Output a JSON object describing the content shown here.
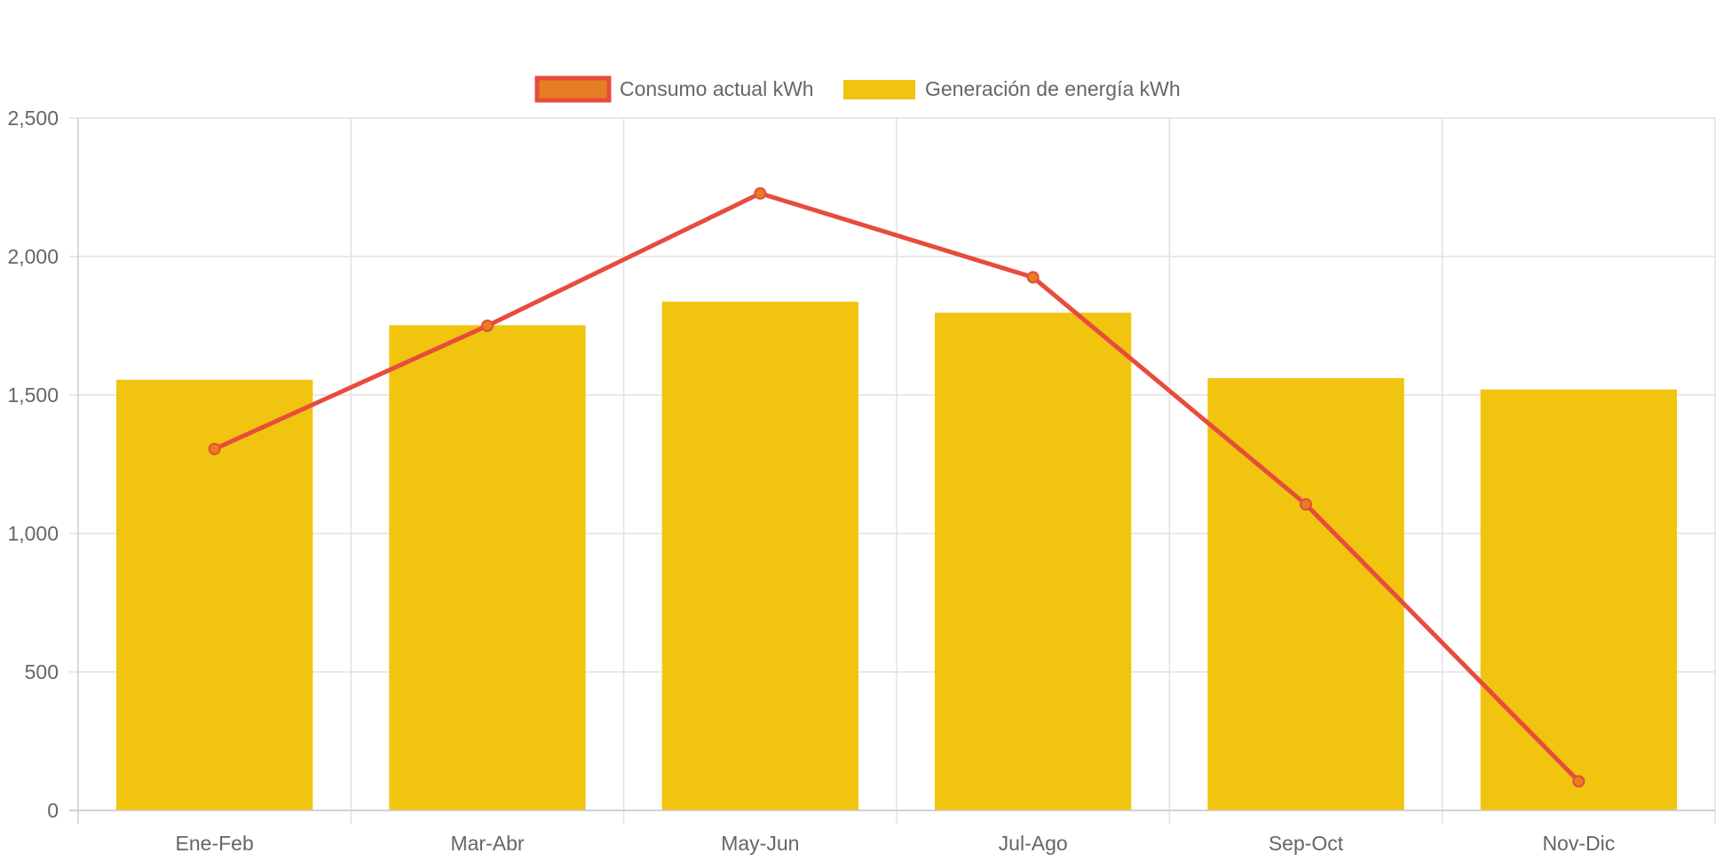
{
  "chart_data": {
    "type": "bar",
    "title": "",
    "xlabel": "",
    "ylabel": "",
    "ylim": [
      0,
      2500
    ],
    "yticks": [
      0,
      500,
      1000,
      1500,
      2000,
      2500
    ],
    "ytick_labels": [
      "0",
      "500",
      "1,000",
      "1,500",
      "2,000",
      "2,500"
    ],
    "grid": true,
    "legend_position": "top-center",
    "categories": [
      "Ene-Feb",
      "Mar-Abr",
      "May-Jun",
      "Jul-Ago",
      "Sep-Oct",
      "Nov-Dic"
    ],
    "series": [
      {
        "name": "Consumo actual kWh",
        "type": "line",
        "values": [
          1305,
          1750,
          2228,
          1925,
          1105,
          105
        ],
        "color": "#e74c3c",
        "point_color": "#e67e22"
      },
      {
        "name": "Generación de energía kWh",
        "type": "bar",
        "values": [
          1555,
          1752,
          1837,
          1797,
          1561,
          1520
        ],
        "color": "#f1c40f"
      }
    ]
  }
}
